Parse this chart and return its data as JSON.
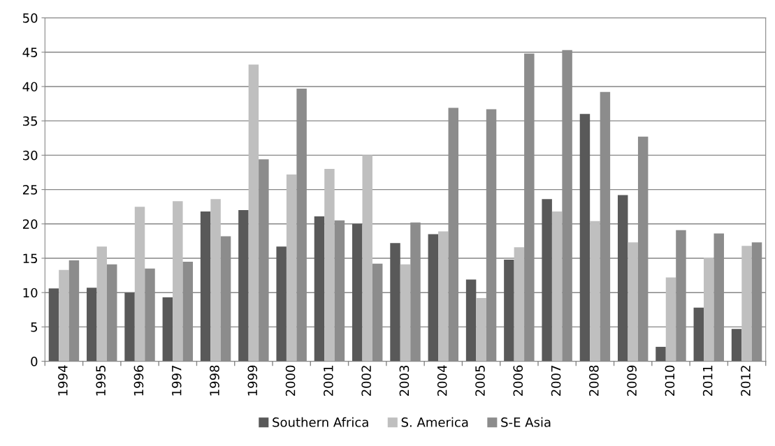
{
  "chart_data": {
    "type": "bar",
    "categories": [
      "1994",
      "1995",
      "1996",
      "1997",
      "1998",
      "1999",
      "2000",
      "2001",
      "2002",
      "2003",
      "2004",
      "2005",
      "2006",
      "2007",
      "2008",
      "2009",
      "2010",
      "2011",
      "2012"
    ],
    "series": [
      {
        "name": "Southern Africa",
        "color": "#595959",
        "values": [
          10.6,
          10.7,
          10.0,
          9.3,
          21.8,
          22.0,
          16.7,
          21.1,
          20.0,
          17.2,
          18.5,
          11.9,
          14.8,
          23.6,
          36.0,
          24.2,
          2.1,
          7.8,
          4.7
        ]
      },
      {
        "name": "S. America",
        "color": "#bfbfbf",
        "values": [
          13.3,
          16.7,
          22.5,
          23.3,
          23.6,
          43.2,
          27.2,
          28.0,
          30.0,
          14.1,
          18.9,
          9.2,
          16.6,
          21.8,
          20.4,
          17.3,
          12.2,
          15.1,
          16.8
        ]
      },
      {
        "name": "S-E Asia",
        "color": "#8c8c8c",
        "values": [
          14.7,
          14.1,
          13.5,
          14.5,
          18.2,
          29.4,
          39.7,
          20.5,
          14.2,
          20.2,
          36.9,
          36.7,
          44.8,
          45.3,
          39.2,
          32.7,
          19.1,
          18.6,
          17.3
        ]
      }
    ],
    "ylim": [
      0,
      50
    ],
    "yticks": [
      0,
      5,
      10,
      15,
      20,
      25,
      30,
      35,
      40,
      45,
      50
    ],
    "grid": "y",
    "legend": "bottom"
  }
}
